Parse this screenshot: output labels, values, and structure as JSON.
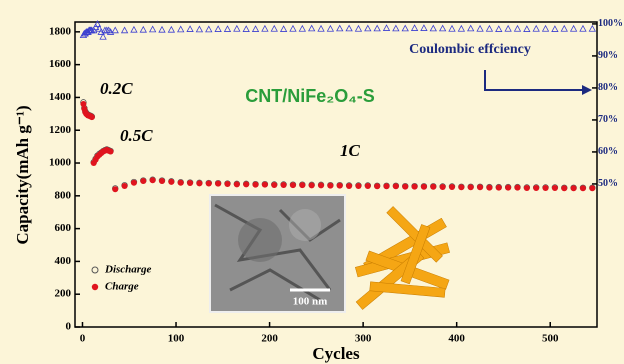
{
  "chart_data": {
    "type": "scatter",
    "title": "CNT/NiFe₂O₄-S",
    "x_label": "Cycles",
    "y_label": "Capacity(mAh g⁻¹)",
    "annotations": [
      "0.2C",
      "0.5C",
      "1C",
      "Coulombic effciency",
      "100 nm"
    ],
    "xlim": [
      -8,
      550
    ],
    "xticks": [
      0,
      100,
      200,
      300,
      400,
      500
    ],
    "ylim": [
      0,
      1860
    ],
    "yticks": [
      0,
      200,
      400,
      600,
      800,
      1000,
      1200,
      1400,
      1600,
      1800
    ],
    "y2lim": [
      5.3,
      100.6
    ],
    "y2ticks": [
      {
        "value": 50,
        "label": "50%"
      },
      {
        "value": 60,
        "label": "60%"
      },
      {
        "value": 70,
        "label": "70%"
      },
      {
        "value": 80,
        "label": "80%"
      },
      {
        "value": 90,
        "label": "90%"
      },
      {
        "value": 100,
        "label": "100%"
      }
    ],
    "x": [
      1,
      2,
      3,
      4,
      5,
      6,
      7,
      8,
      9,
      10,
      12,
      14,
      16,
      18,
      20,
      22,
      24,
      26,
      28,
      30,
      35,
      45,
      55,
      65,
      75,
      85,
      95,
      105,
      115,
      125,
      135,
      145,
      155,
      165,
      175,
      185,
      195,
      205,
      215,
      225,
      235,
      245,
      255,
      265,
      275,
      285,
      295,
      305,
      315,
      325,
      335,
      345,
      355,
      365,
      375,
      385,
      395,
      405,
      415,
      425,
      435,
      445,
      455,
      465,
      475,
      485,
      495,
      505,
      515,
      525,
      535,
      545
    ],
    "series": [
      {
        "name": "Discharge",
        "color": "#555555",
        "marker": "circle-open",
        "values": [
          1370,
          1335,
          1315,
          1305,
          1298,
          1294,
          1292,
          1288,
          1287,
          1283,
          1005,
          1025,
          1045,
          1055,
          1063,
          1072,
          1078,
          1083,
          1078,
          1073,
          845,
          864,
          884,
          893,
          898,
          893,
          888,
          883,
          881,
          879,
          878,
          877,
          875,
          873,
          873,
          871,
          871,
          869,
          869,
          868,
          868,
          867,
          867,
          865,
          865,
          863,
          863,
          863,
          861,
          861,
          861,
          859,
          859,
          858,
          858,
          857,
          857,
          855,
          855,
          855,
          853,
          853,
          853,
          853,
          851,
          851,
          851,
          851,
          849,
          849,
          849,
          849
        ]
      },
      {
        "name": "Charge",
        "color": "#e0141e",
        "marker": "circle",
        "values": [
          1360,
          1330,
          1310,
          1300,
          1295,
          1290,
          1290,
          1285,
          1285,
          1280,
          1000,
          1020,
          1040,
          1050,
          1060,
          1070,
          1075,
          1080,
          1075,
          1070,
          840,
          860,
          880,
          890,
          895,
          890,
          885,
          880,
          878,
          876,
          875,
          874,
          872,
          870,
          870,
          868,
          868,
          866,
          866,
          865,
          865,
          864,
          864,
          862,
          862,
          860,
          860,
          860,
          858,
          858,
          858,
          856,
          856,
          855,
          855,
          854,
          854,
          852,
          852,
          852,
          850,
          850,
          850,
          850,
          848,
          848,
          848,
          848,
          846,
          846,
          846,
          846
        ]
      },
      {
        "name": "Coulombic effciency",
        "color": "#3b3fd0",
        "marker": "triangle-open",
        "axis": "y2",
        "values": [
          96.5,
          97,
          97,
          97.5,
          97.5,
          97.5,
          98,
          98,
          98,
          98,
          98,
          99,
          100,
          98.5,
          97.5,
          96,
          98,
          98,
          98,
          97.5,
          98,
          98,
          98.2,
          98.2,
          98.3,
          98.2,
          98.2,
          98.3,
          98.4,
          98.3,
          98.3,
          98.4,
          98.4,
          98.5,
          98.4,
          98.4,
          98.5,
          98.5,
          98.4,
          98.5,
          98.5,
          98.6,
          98.5,
          98.5,
          98.6,
          98.6,
          98.5,
          98.6,
          98.6,
          98.7,
          98.6,
          98.6,
          98.7,
          98.7,
          98.6,
          98.6,
          98.5,
          98.5,
          98.6,
          98.5,
          98.5,
          98.4,
          98.5,
          98.5,
          98.4,
          98.5,
          98.5,
          98.4,
          98.5,
          98.5,
          98.5,
          98.5
        ]
      }
    ]
  }
}
